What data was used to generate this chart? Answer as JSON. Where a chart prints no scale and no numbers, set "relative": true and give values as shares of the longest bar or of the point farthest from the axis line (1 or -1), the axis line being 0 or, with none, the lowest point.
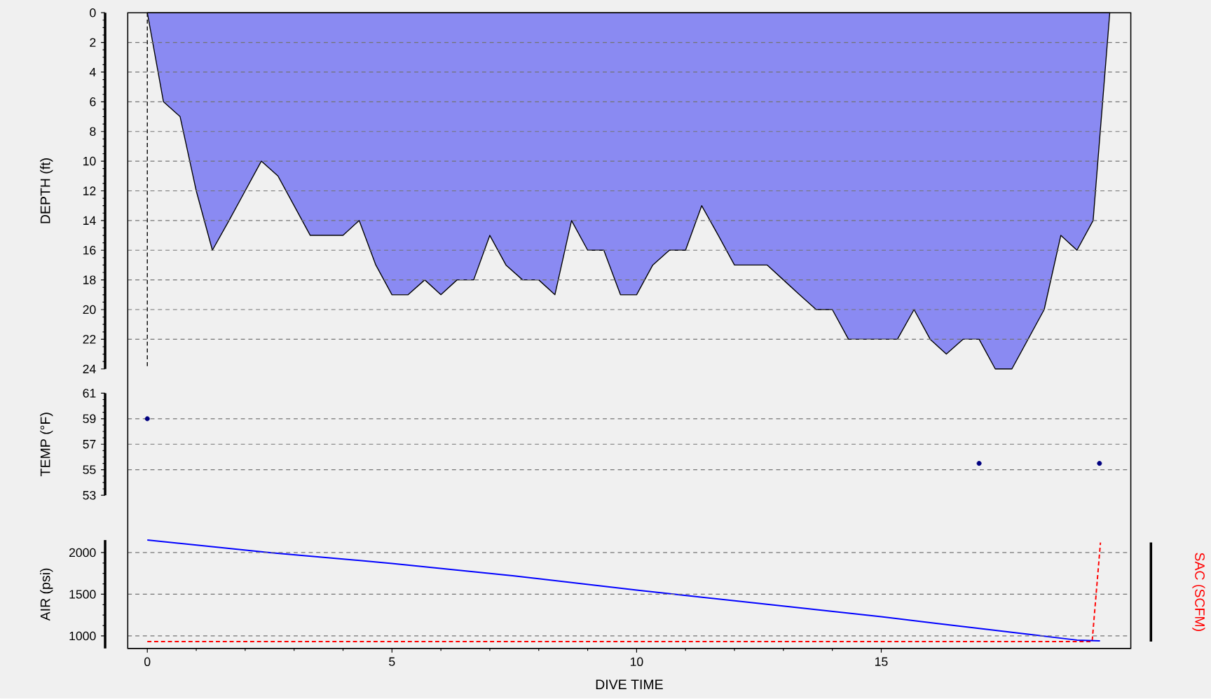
{
  "chart_data": [
    {
      "type": "area",
      "ylabel": "DEPTH (ft)",
      "series": [
        {
          "color": "#8a8af2",
          "x": [
            0,
            0.33,
            0.67,
            1,
            1.33,
            1.67,
            2,
            2.33,
            2.67,
            3,
            3.33,
            3.67,
            4,
            4.33,
            4.67,
            5,
            5.33,
            5.67,
            6,
            6.33,
            6.67,
            7,
            7.33,
            7.67,
            8,
            8.33,
            8.67,
            9,
            9.33,
            9.67,
            10,
            10.33,
            10.67,
            11,
            11.33,
            11.67,
            12,
            12.33,
            12.67,
            13,
            13.33,
            13.67,
            14,
            14.33,
            14.67,
            15,
            15.33,
            15.67,
            16,
            16.33,
            16.67,
            17,
            17.33,
            17.67,
            18,
            18.33,
            18.67,
            19,
            19.33,
            19.67
          ],
          "values": [
            0,
            6,
            7,
            12,
            16,
            14,
            12,
            10,
            11,
            13,
            15,
            15,
            15,
            14,
            17,
            19,
            19,
            18,
            19,
            18,
            18,
            15,
            17,
            18,
            18,
            19,
            14,
            16,
            16,
            19,
            19,
            17,
            16,
            16,
            13,
            15,
            17,
            17,
            17,
            18,
            19,
            20,
            20,
            22,
            22,
            22,
            22,
            20,
            22,
            23,
            22,
            22,
            24,
            24,
            22,
            20,
            15,
            16,
            14,
            0
          ]
        }
      ],
      "xlim": [
        -0.4,
        20.1
      ],
      "ylim": [
        24,
        0
      ],
      "yticks": [
        0,
        2,
        4,
        6,
        8,
        10,
        12,
        14,
        16,
        18,
        20,
        22,
        24
      ],
      "grid": "y",
      "tick_labels": "y",
      "ref_lines": [
        {
          "axis": "x",
          "value": 0,
          "color": "#000000",
          "line_style": "dashed"
        }
      ]
    },
    {
      "type": "scatter",
      "ylabel": "TEMP (°F)",
      "series": [
        {
          "color": "#000080",
          "x": [
            0,
            17,
            19.46
          ],
          "values": [
            59,
            55.5,
            55.5
          ]
        }
      ],
      "marker": "circle",
      "xlim": [
        -0.4,
        20.1
      ],
      "ylim": [
        53,
        61
      ],
      "yticks": [
        53,
        55,
        57,
        59,
        61
      ],
      "grid": "y",
      "tick_labels": "y"
    },
    {
      "type": "line",
      "relative": true,
      "y2label": "SAC (SCFM)",
      "series": [
        {
          "color": "#ff0000",
          "x": [
            0,
            19.31,
            19.48
          ],
          "values": [
            0,
            0,
            1
          ]
        }
      ],
      "line_style": "dashed",
      "xlim": [
        -0.4,
        20.1
      ],
      "tick_labels": false
    },
    {
      "type": "line",
      "ylabel": "AIR (psi)",
      "xlabel": "DIVE TIME",
      "series": [
        {
          "color": "#0000ff",
          "x": [
            0,
            2.5,
            5,
            7.5,
            10,
            12.5,
            15,
            16,
            17,
            18,
            19,
            19.47
          ],
          "values": [
            2150,
            2000,
            1870,
            1720,
            1550,
            1390,
            1230,
            1160,
            1090,
            1020,
            950,
            940
          ]
        }
      ],
      "xlim": [
        -0.4,
        20.1
      ],
      "xticks": [
        0,
        5,
        10,
        15
      ],
      "ylim": [
        850,
        2150
      ],
      "yticks": [
        1000,
        1500,
        2000
      ],
      "grid": "y"
    }
  ]
}
